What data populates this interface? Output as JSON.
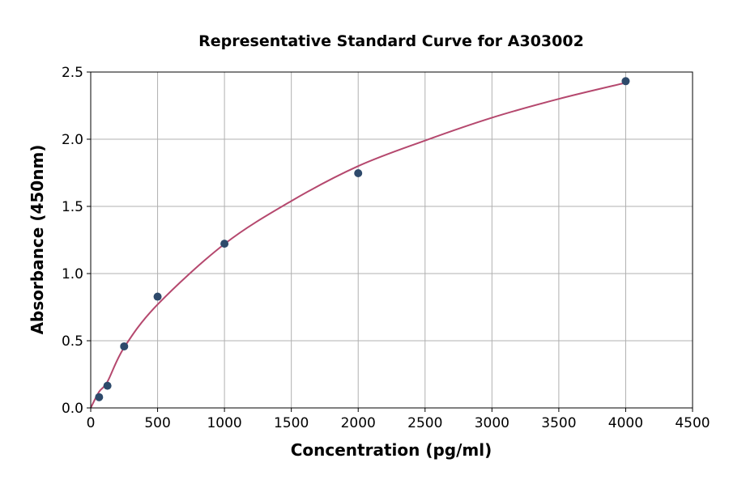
{
  "chart_data": {
    "type": "scatter",
    "title": "Representative Standard Curve for A303002",
    "xlabel": "Concentration (pg/ml)",
    "ylabel": "Absorbance (450nm)",
    "xlim": [
      0,
      4500
    ],
    "ylim": [
      0,
      2.5
    ],
    "xticks": [
      "0",
      "500",
      "1000",
      "1500",
      "2000",
      "2500",
      "3000",
      "3500",
      "4000",
      "4500"
    ],
    "yticks": [
      "0.0",
      "0.5",
      "1.0",
      "1.5",
      "2.0",
      "2.5"
    ],
    "grid": true,
    "points": {
      "x": [
        62.5,
        125,
        250,
        500,
        1000,
        2000,
        4000
      ],
      "y": [
        0.08,
        0.165,
        0.458,
        0.828,
        1.222,
        1.747,
        2.432
      ],
      "color": "#2e4a6b"
    },
    "fit_curve": {
      "x": [
        0,
        62.5,
        125,
        250,
        500,
        1000,
        1500,
        2000,
        2500,
        3000,
        3500,
        4000
      ],
      "y": [
        0,
        0.12,
        0.195,
        0.45,
        0.77,
        1.22,
        1.54,
        1.8,
        1.99,
        2.16,
        2.3,
        2.42
      ],
      "color": "#b5486e"
    }
  }
}
